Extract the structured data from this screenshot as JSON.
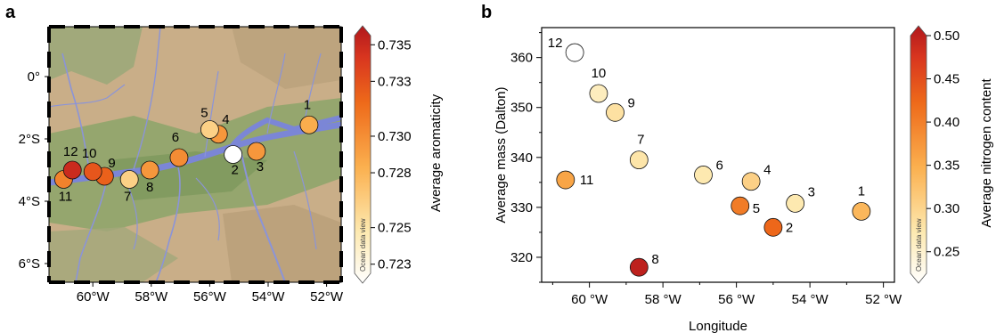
{
  "panels": {
    "a": "a",
    "b": "b"
  },
  "chart_data": [
    {
      "type": "scatter",
      "panel": "a",
      "title": "",
      "xlabel": "",
      "ylabel": "",
      "x_ticks": [
        "60°W",
        "58°W",
        "56°W",
        "54°W",
        "52°W"
      ],
      "x_tick_values": [
        -60,
        -58,
        -56,
        -54,
        -52
      ],
      "y_ticks": [
        "0°",
        "2°S",
        "4°S",
        "6°S"
      ],
      "y_tick_values": [
        0,
        -2,
        -4,
        -6
      ],
      "xlim": [
        -61.5,
        -51.5
      ],
      "ylim": [
        -6.6,
        1.6
      ],
      "colorbar": {
        "label": "Average aromaticity",
        "ticks": [
          "0.735",
          "0.733",
          "0.730",
          "0.728",
          "0.725",
          "0.723"
        ],
        "tick_values": [
          0.735,
          0.733,
          0.73,
          0.728,
          0.725,
          0.723
        ],
        "range": [
          0.7225,
          0.7355
        ],
        "watermark": "Ocean data view"
      },
      "points": [
        {
          "id": "1",
          "lon": -52.6,
          "lat": -1.55,
          "value": 0.7285
        },
        {
          "id": "2",
          "lon": -55.2,
          "lat": -2.5,
          "value": 0.7225
        },
        {
          "id": "3",
          "lon": -54.4,
          "lat": -2.4,
          "value": 0.7295
        },
        {
          "id": "4",
          "lon": -55.7,
          "lat": -1.85,
          "value": 0.7295
        },
        {
          "id": "5",
          "lon": -56.0,
          "lat": -1.7,
          "value": 0.7265
        },
        {
          "id": "6",
          "lon": -57.05,
          "lat": -2.6,
          "value": 0.73
        },
        {
          "id": "7",
          "lon": -58.75,
          "lat": -3.3,
          "value": 0.7265
        },
        {
          "id": "8",
          "lon": -58.05,
          "lat": -3.0,
          "value": 0.7295
        },
        {
          "id": "9",
          "lon": -59.6,
          "lat": -3.2,
          "value": 0.732
        },
        {
          "id": "10",
          "lon": -60.0,
          "lat": -3.05,
          "value": 0.7325
        },
        {
          "id": "11",
          "lon": -61.0,
          "lat": -3.3,
          "value": 0.7305
        },
        {
          "id": "12",
          "lon": -60.7,
          "lat": -3.0,
          "value": 0.7345
        }
      ]
    },
    {
      "type": "scatter",
      "panel": "b",
      "title": "",
      "xlabel": "Longitude",
      "ylabel": "Average mass (Dalton)",
      "x_ticks": [
        "60 °W",
        "58 °W",
        "56 °W",
        "54 °W",
        "52 °W"
      ],
      "x_tick_values": [
        -60,
        -58,
        -56,
        -54,
        -52
      ],
      "y_ticks": [
        "320",
        "330",
        "340",
        "350",
        "360"
      ],
      "y_tick_values": [
        320,
        330,
        340,
        350,
        360
      ],
      "xlim": [
        -61.3,
        -51.7
      ],
      "ylim": [
        315,
        366
      ],
      "colorbar": {
        "label": "Average nitrogen content",
        "ticks": [
          "0.50",
          "0.45",
          "0.40",
          "0.35",
          "0.30",
          "0.25"
        ],
        "tick_values": [
          0.5,
          0.45,
          0.4,
          0.35,
          0.3,
          0.25
        ],
        "range": [
          0.225,
          0.5
        ],
        "watermark": "Ocean data view"
      },
      "points": [
        {
          "id": "1",
          "lon": -52.6,
          "mass": 329.2,
          "value": 0.34
        },
        {
          "id": "2",
          "lon": -55.0,
          "mass": 326.0,
          "value": 0.42
        },
        {
          "id": "3",
          "lon": -54.4,
          "mass": 330.8,
          "value": 0.28
        },
        {
          "id": "4",
          "lon": -55.6,
          "mass": 335.2,
          "value": 0.31
        },
        {
          "id": "5",
          "lon": -55.9,
          "mass": 330.3,
          "value": 0.4
        },
        {
          "id": "6",
          "lon": -56.9,
          "mass": 336.5,
          "value": 0.28
        },
        {
          "id": "7",
          "lon": -58.65,
          "mass": 339.5,
          "value": 0.285
        },
        {
          "id": "8",
          "lon": -58.65,
          "mass": 318.0,
          "value": 0.49
        },
        {
          "id": "9",
          "lon": -59.3,
          "mass": 349.0,
          "value": 0.29
        },
        {
          "id": "10",
          "lon": -59.75,
          "mass": 352.8,
          "value": 0.27
        },
        {
          "id": "11",
          "lon": -60.65,
          "mass": 335.5,
          "value": 0.36
        },
        {
          "id": "12",
          "lon": -60.4,
          "mass": 361.0,
          "value": 0.225
        }
      ]
    }
  ]
}
